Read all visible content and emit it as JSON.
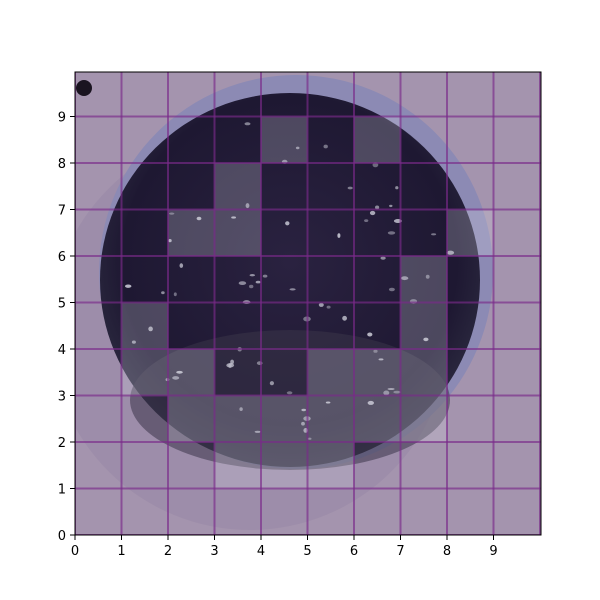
{
  "image": {
    "description_icon": "petri-dish-photo",
    "background_color": "#a392ad",
    "dish_rim_color": "#9a9ac2",
    "dish_interior_color": "#221b36",
    "grid_line_color": "#7a2a8a",
    "highlight_color": "#d8d8e4"
  },
  "axes": {
    "x_ticks": [
      "0",
      "1",
      "2",
      "3",
      "4",
      "5",
      "6",
      "7",
      "8",
      "9"
    ],
    "y_ticks": [
      "0",
      "1",
      "2",
      "3",
      "4",
      "5",
      "6",
      "7",
      "8",
      "9"
    ],
    "x_range": [
      0,
      10
    ],
    "y_range": [
      0,
      10
    ],
    "grid": true
  },
  "highlighted_cells": [
    [
      4,
      8
    ],
    [
      6,
      8
    ],
    [
      3,
      7
    ],
    [
      2,
      6
    ],
    [
      3,
      6
    ],
    [
      8,
      6
    ],
    [
      7,
      5
    ],
    [
      1,
      4
    ],
    [
      7,
      4
    ],
    [
      1,
      3
    ],
    [
      2,
      3
    ],
    [
      5,
      3
    ],
    [
      6,
      3
    ],
    [
      7,
      3
    ],
    [
      2,
      2
    ],
    [
      3,
      2
    ],
    [
      4,
      2
    ],
    [
      5,
      2
    ],
    [
      6,
      2
    ],
    [
      7,
      2
    ],
    [
      3,
      1
    ],
    [
      4,
      1
    ],
    [
      5,
      1
    ]
  ]
}
